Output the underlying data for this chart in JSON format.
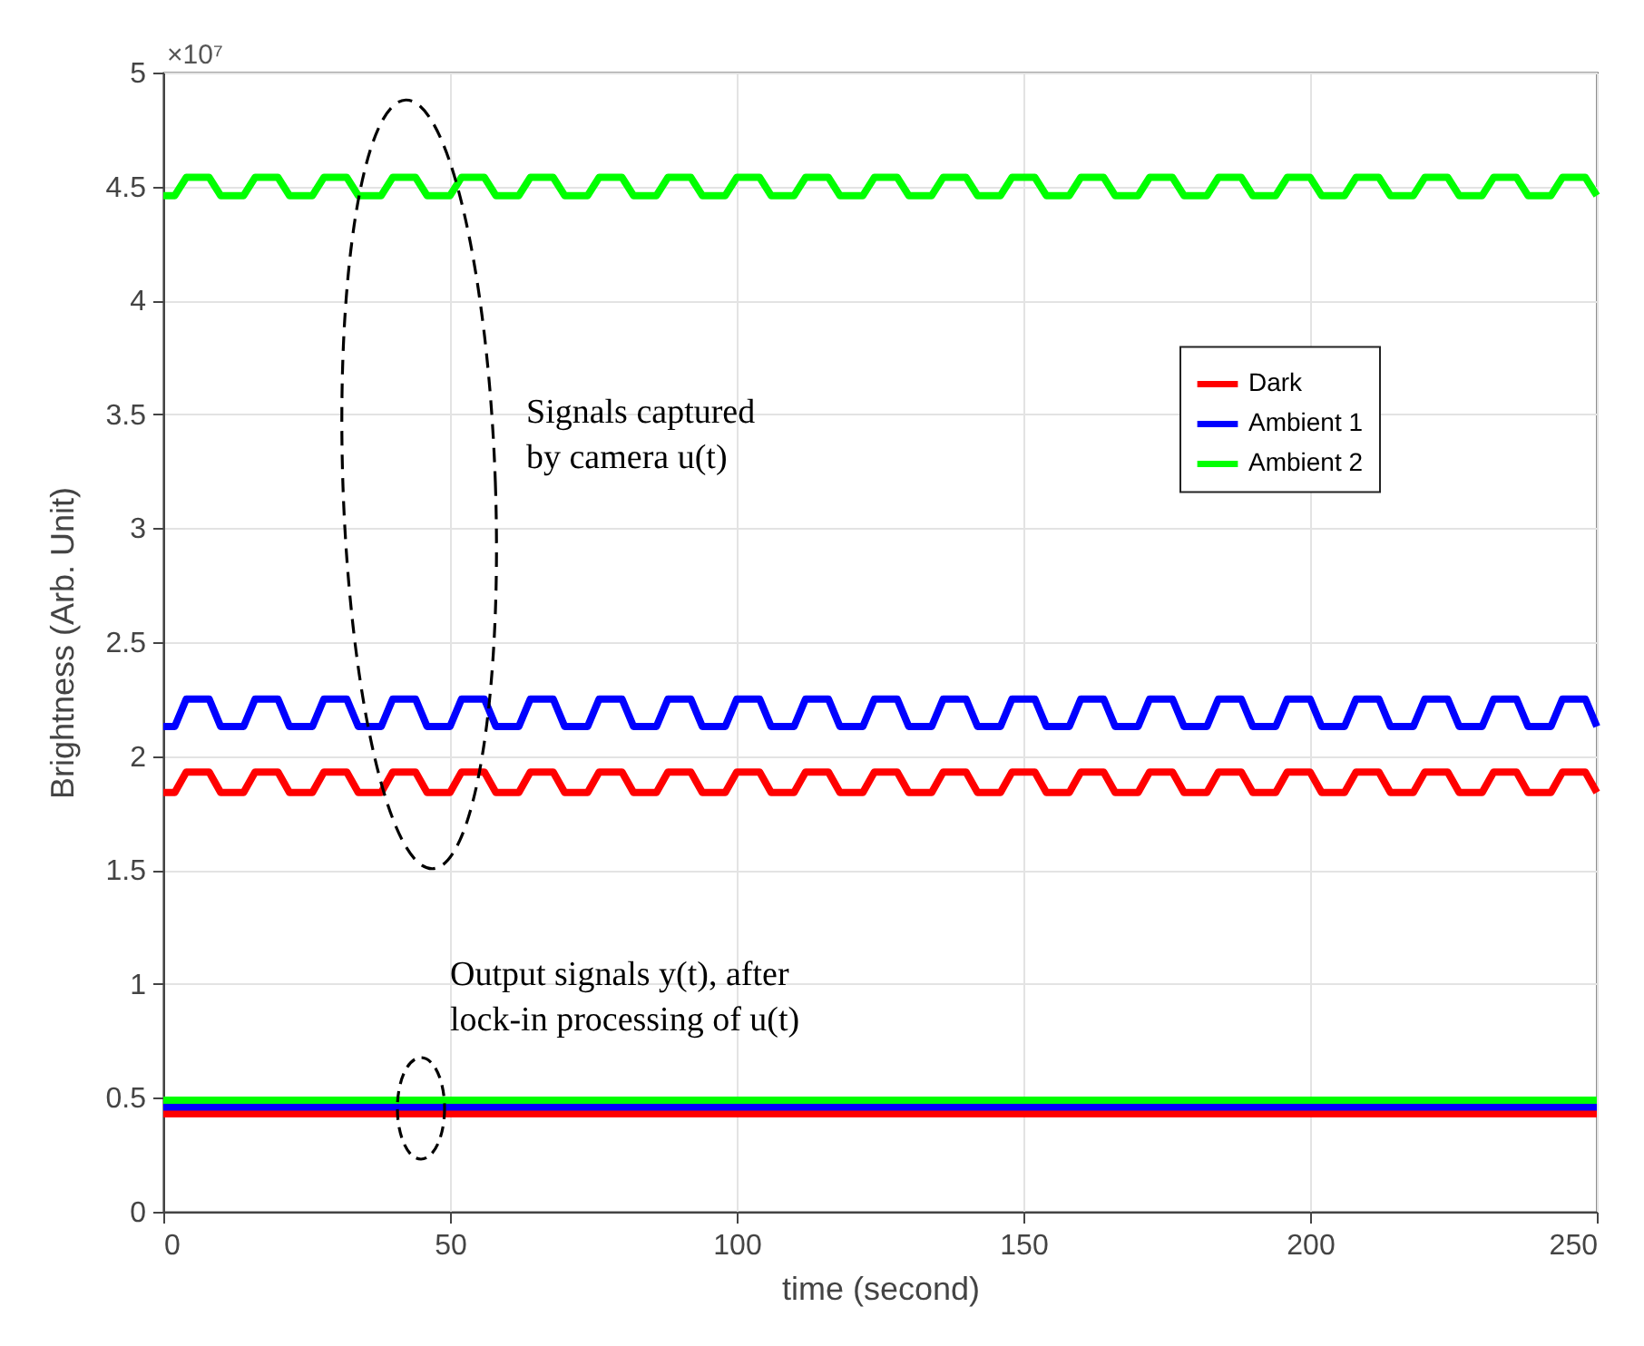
{
  "chart_data": {
    "type": "line",
    "xlabel": "time (second)",
    "ylabel": "Brightness (Arb. Unit)",
    "x": [
      0,
      2,
      4,
      6,
      8,
      10,
      12,
      14,
      16,
      18,
      20,
      22,
      24,
      26,
      28,
      30,
      32,
      34,
      36,
      38,
      40,
      42,
      44,
      46,
      48,
      50,
      52,
      54,
      56,
      58,
      60,
      62,
      64,
      66,
      68,
      70,
      72,
      74,
      76,
      78,
      80,
      82,
      84,
      86,
      88,
      90,
      92,
      94,
      96,
      98,
      100,
      102,
      104,
      106,
      108,
      110,
      112,
      114,
      116,
      118,
      120,
      122,
      124,
      126,
      128,
      130,
      132,
      134,
      136,
      138,
      140,
      142,
      144,
      146,
      148,
      150,
      152,
      154,
      156,
      158,
      160,
      162,
      164,
      166,
      168,
      170,
      172,
      174,
      176,
      178,
      180,
      182,
      184,
      186,
      188,
      190,
      192,
      194,
      196,
      198,
      200,
      202,
      204,
      206,
      208,
      210,
      212,
      214,
      216,
      218,
      220,
      222,
      224,
      226,
      228,
      230,
      232,
      234,
      236,
      238,
      240,
      242,
      244,
      246,
      248,
      250
    ],
    "series": [
      {
        "name": "Dark",
        "color": "#ff0000",
        "values": [
          1.84,
          1.84,
          1.93,
          1.93,
          1.93,
          1.84,
          1.84,
          1.84,
          1.93,
          1.93,
          1.93,
          1.84,
          1.84,
          1.84,
          1.93,
          1.93,
          1.93,
          1.84,
          1.84,
          1.84,
          1.93,
          1.93,
          1.93,
          1.84,
          1.84,
          1.84,
          1.93,
          1.93,
          1.93,
          1.84,
          1.84,
          1.84,
          1.93,
          1.93,
          1.93,
          1.84,
          1.84,
          1.84,
          1.93,
          1.93,
          1.93,
          1.84,
          1.84,
          1.84,
          1.93,
          1.93,
          1.93,
          1.84,
          1.84,
          1.84,
          1.93,
          1.93,
          1.93,
          1.84,
          1.84,
          1.84,
          1.93,
          1.93,
          1.93,
          1.84,
          1.84,
          1.84,
          1.93,
          1.93,
          1.93,
          1.84,
          1.84,
          1.84,
          1.93,
          1.93,
          1.93,
          1.84,
          1.84,
          1.84,
          1.93,
          1.93,
          1.93,
          1.84,
          1.84,
          1.84,
          1.93,
          1.93,
          1.93,
          1.84,
          1.84,
          1.84,
          1.93,
          1.93,
          1.93,
          1.84,
          1.84,
          1.84,
          1.93,
          1.93,
          1.93,
          1.84,
          1.84,
          1.84,
          1.93,
          1.93,
          1.93,
          1.84,
          1.84,
          1.84,
          1.93,
          1.93,
          1.93,
          1.84,
          1.84,
          1.84,
          1.93,
          1.93,
          1.93,
          1.84,
          1.84,
          1.84,
          1.93,
          1.93,
          1.93,
          1.84,
          1.84,
          1.84,
          1.93,
          1.93,
          1.93,
          1.84
        ]
      },
      {
        "name": "Ambient 1",
        "color": "#0000ff",
        "values": [
          2.13,
          2.13,
          2.25,
          2.25,
          2.25,
          2.13,
          2.13,
          2.13,
          2.25,
          2.25,
          2.25,
          2.13,
          2.13,
          2.13,
          2.25,
          2.25,
          2.25,
          2.13,
          2.13,
          2.13,
          2.25,
          2.25,
          2.25,
          2.13,
          2.13,
          2.13,
          2.25,
          2.25,
          2.25,
          2.13,
          2.13,
          2.13,
          2.25,
          2.25,
          2.25,
          2.13,
          2.13,
          2.13,
          2.25,
          2.25,
          2.25,
          2.13,
          2.13,
          2.13,
          2.25,
          2.25,
          2.25,
          2.13,
          2.13,
          2.13,
          2.25,
          2.25,
          2.25,
          2.13,
          2.13,
          2.13,
          2.25,
          2.25,
          2.25,
          2.13,
          2.13,
          2.13,
          2.25,
          2.25,
          2.25,
          2.13,
          2.13,
          2.13,
          2.25,
          2.25,
          2.25,
          2.13,
          2.13,
          2.13,
          2.25,
          2.25,
          2.25,
          2.13,
          2.13,
          2.13,
          2.25,
          2.25,
          2.25,
          2.13,
          2.13,
          2.13,
          2.25,
          2.25,
          2.25,
          2.13,
          2.13,
          2.13,
          2.25,
          2.25,
          2.25,
          2.13,
          2.13,
          2.13,
          2.25,
          2.25,
          2.25,
          2.13,
          2.13,
          2.13,
          2.25,
          2.25,
          2.25,
          2.13,
          2.13,
          2.13,
          2.25,
          2.25,
          2.25,
          2.13,
          2.13,
          2.13,
          2.25,
          2.25,
          2.25,
          2.13,
          2.13,
          2.13,
          2.25,
          2.25,
          2.25,
          2.13
        ]
      },
      {
        "name": "Ambient 2",
        "color": "#00ff00",
        "values": [
          4.46,
          4.46,
          4.54,
          4.54,
          4.54,
          4.46,
          4.46,
          4.46,
          4.54,
          4.54,
          4.54,
          4.46,
          4.46,
          4.46,
          4.54,
          4.54,
          4.54,
          4.46,
          4.46,
          4.46,
          4.54,
          4.54,
          4.54,
          4.46,
          4.46,
          4.46,
          4.54,
          4.54,
          4.54,
          4.46,
          4.46,
          4.46,
          4.54,
          4.54,
          4.54,
          4.46,
          4.46,
          4.46,
          4.54,
          4.54,
          4.54,
          4.46,
          4.46,
          4.46,
          4.54,
          4.54,
          4.54,
          4.46,
          4.46,
          4.46,
          4.54,
          4.54,
          4.54,
          4.46,
          4.46,
          4.46,
          4.54,
          4.54,
          4.54,
          4.46,
          4.46,
          4.46,
          4.54,
          4.54,
          4.54,
          4.46,
          4.46,
          4.46,
          4.54,
          4.54,
          4.54,
          4.46,
          4.46,
          4.46,
          4.54,
          4.54,
          4.54,
          4.46,
          4.46,
          4.46,
          4.54,
          4.54,
          4.54,
          4.46,
          4.46,
          4.46,
          4.54,
          4.54,
          4.54,
          4.46,
          4.46,
          4.46,
          4.54,
          4.54,
          4.54,
          4.46,
          4.46,
          4.46,
          4.54,
          4.54,
          4.54,
          4.46,
          4.46,
          4.46,
          4.54,
          4.54,
          4.54,
          4.46,
          4.46,
          4.46,
          4.54,
          4.54,
          4.54,
          4.46,
          4.46,
          4.46,
          4.54,
          4.54,
          4.54,
          4.46,
          4.46,
          4.46,
          4.54,
          4.54,
          4.54,
          4.46
        ]
      },
      {
        "color": "#ff0000",
        "values": [
          0.43,
          0.43,
          0.43,
          0.43,
          0.43,
          0.43,
          0.43,
          0.43,
          0.43,
          0.43,
          0.43,
          0.43,
          0.43,
          0.43,
          0.43,
          0.43,
          0.43,
          0.43,
          0.43,
          0.43,
          0.43,
          0.43,
          0.43,
          0.43,
          0.43,
          0.43,
          0.43,
          0.43,
          0.43,
          0.43,
          0.43,
          0.43,
          0.43,
          0.43,
          0.43,
          0.43,
          0.43,
          0.43,
          0.43,
          0.43,
          0.43,
          0.43,
          0.43,
          0.43,
          0.43,
          0.43,
          0.43,
          0.43,
          0.43,
          0.43,
          0.43,
          0.43,
          0.43,
          0.43,
          0.43,
          0.43,
          0.43,
          0.43,
          0.43,
          0.43,
          0.43,
          0.43,
          0.43,
          0.43,
          0.43,
          0.43,
          0.43,
          0.43,
          0.43,
          0.43,
          0.43,
          0.43,
          0.43,
          0.43,
          0.43,
          0.43,
          0.43,
          0.43,
          0.43,
          0.43,
          0.43,
          0.43,
          0.43,
          0.43,
          0.43,
          0.43,
          0.43,
          0.43,
          0.43,
          0.43,
          0.43,
          0.43,
          0.43,
          0.43,
          0.43,
          0.43,
          0.43,
          0.43,
          0.43,
          0.43,
          0.43,
          0.43,
          0.43,
          0.43,
          0.43,
          0.43,
          0.43,
          0.43,
          0.43,
          0.43,
          0.43,
          0.43,
          0.43,
          0.43,
          0.43,
          0.43,
          0.43,
          0.43,
          0.43,
          0.43,
          0.43,
          0.43,
          0.43,
          0.43,
          0.43,
          0.43
        ]
      },
      {
        "color": "#0000ff",
        "values": [
          0.46,
          0.46,
          0.46,
          0.46,
          0.46,
          0.46,
          0.46,
          0.46,
          0.46,
          0.46,
          0.46,
          0.46,
          0.46,
          0.46,
          0.46,
          0.46,
          0.46,
          0.46,
          0.46,
          0.46,
          0.46,
          0.46,
          0.46,
          0.46,
          0.46,
          0.46,
          0.46,
          0.46,
          0.46,
          0.46,
          0.46,
          0.46,
          0.46,
          0.46,
          0.46,
          0.46,
          0.46,
          0.46,
          0.46,
          0.46,
          0.46,
          0.46,
          0.46,
          0.46,
          0.46,
          0.46,
          0.46,
          0.46,
          0.46,
          0.46,
          0.46,
          0.46,
          0.46,
          0.46,
          0.46,
          0.46,
          0.46,
          0.46,
          0.46,
          0.46,
          0.46,
          0.46,
          0.46,
          0.46,
          0.46,
          0.46,
          0.46,
          0.46,
          0.46,
          0.46,
          0.46,
          0.46,
          0.46,
          0.46,
          0.46,
          0.46,
          0.46,
          0.46,
          0.46,
          0.46,
          0.46,
          0.46,
          0.46,
          0.46,
          0.46,
          0.46,
          0.46,
          0.46,
          0.46,
          0.46,
          0.46,
          0.46,
          0.46,
          0.46,
          0.46,
          0.46,
          0.46,
          0.46,
          0.46,
          0.46,
          0.46,
          0.46,
          0.46,
          0.46,
          0.46,
          0.46,
          0.46,
          0.46,
          0.46,
          0.46,
          0.46,
          0.46,
          0.46,
          0.46,
          0.46,
          0.46,
          0.46,
          0.46,
          0.46,
          0.46,
          0.46,
          0.46,
          0.46,
          0.46,
          0.46,
          0.46
        ]
      },
      {
        "color": "#00ff00",
        "values": [
          0.49,
          0.49,
          0.49,
          0.49,
          0.49,
          0.49,
          0.49,
          0.49,
          0.49,
          0.49,
          0.49,
          0.49,
          0.49,
          0.49,
          0.49,
          0.49,
          0.49,
          0.49,
          0.49,
          0.49,
          0.49,
          0.49,
          0.49,
          0.49,
          0.49,
          0.49,
          0.49,
          0.49,
          0.49,
          0.49,
          0.49,
          0.49,
          0.49,
          0.49,
          0.49,
          0.49,
          0.49,
          0.49,
          0.49,
          0.49,
          0.49,
          0.49,
          0.49,
          0.49,
          0.49,
          0.49,
          0.49,
          0.49,
          0.49,
          0.49,
          0.49,
          0.49,
          0.49,
          0.49,
          0.49,
          0.49,
          0.49,
          0.49,
          0.49,
          0.49,
          0.49,
          0.49,
          0.49,
          0.49,
          0.49,
          0.49,
          0.49,
          0.49,
          0.49,
          0.49,
          0.49,
          0.49,
          0.49,
          0.49,
          0.49,
          0.49,
          0.49,
          0.49,
          0.49,
          0.49,
          0.49,
          0.49,
          0.49,
          0.49,
          0.49,
          0.49,
          0.49,
          0.49,
          0.49,
          0.49,
          0.49,
          0.49,
          0.49,
          0.49,
          0.49,
          0.49,
          0.49,
          0.49,
          0.49,
          0.49,
          0.49,
          0.49,
          0.49,
          0.49,
          0.49,
          0.49,
          0.49,
          0.49,
          0.49,
          0.49,
          0.49,
          0.49,
          0.49,
          0.49,
          0.49,
          0.49,
          0.49,
          0.49,
          0.49,
          0.49,
          0.49,
          0.49,
          0.49,
          0.49,
          0.49,
          0.49
        ]
      }
    ],
    "xlim": [
      0,
      250
    ],
    "xticks": [
      0,
      50,
      100,
      150,
      200,
      250
    ],
    "ylim": [
      0,
      5
    ],
    "yticks": [
      0,
      0.5,
      1,
      1.5,
      2,
      2.5,
      3,
      3.5,
      4,
      4.5,
      5
    ],
    "grid": true,
    "legend": "right",
    "annotations": [
      "×10⁷",
      "Signals captured\nby camera u(t)",
      "Output signals y(t), after\nlock-in processing of u(t)"
    ]
  }
}
